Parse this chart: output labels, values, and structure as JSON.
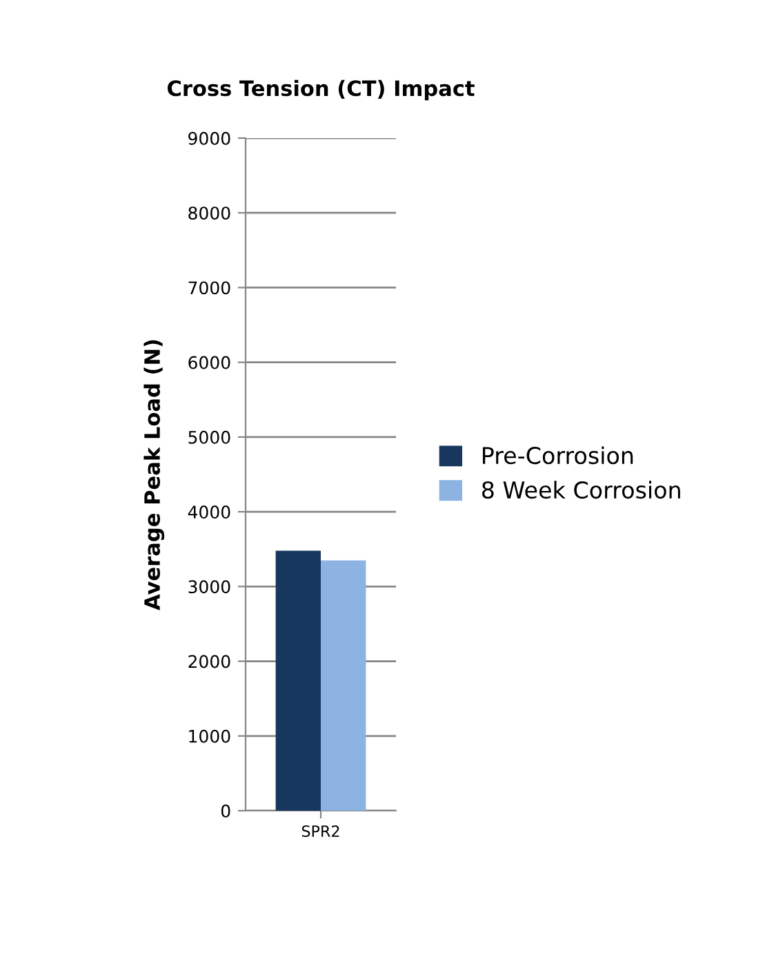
{
  "chart_data": {
    "type": "bar",
    "title": "Cross Tension (CT) Impact",
    "ylabel": "Average Peak Load (N)",
    "categories": [
      "SPR2"
    ],
    "series": [
      {
        "name": "Pre-Corrosion",
        "color": "#17375e",
        "values": [
          3480
        ]
      },
      {
        "name": "8 Week Corrosion",
        "color": "#8db3e2",
        "values": [
          3350
        ]
      }
    ],
    "ylim": [
      0,
      9000
    ],
    "yticks": [
      0,
      1000,
      2000,
      3000,
      4000,
      5000,
      6000,
      7000,
      8000,
      9000
    ],
    "grid": "y",
    "legend": "right"
  }
}
